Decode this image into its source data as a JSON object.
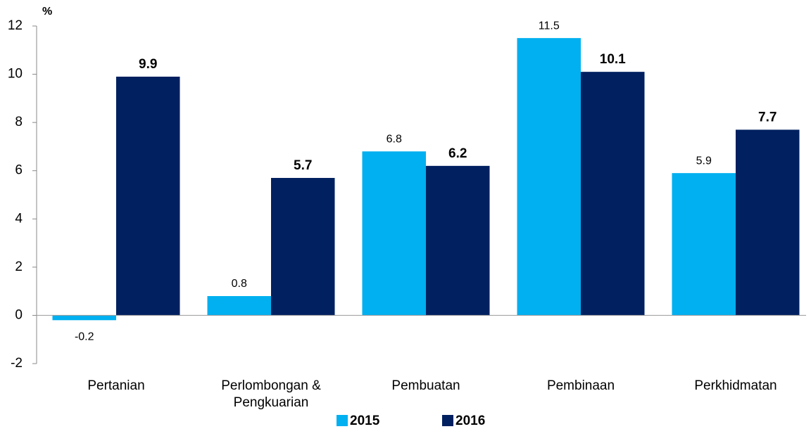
{
  "chart_data": {
    "type": "bar",
    "y_label": "%",
    "categories": [
      "Pertanian",
      "Perlombongan &\nPengkuarian",
      "Pembuatan",
      "Pembinaan",
      "Perkhidmatan"
    ],
    "series": [
      {
        "name": "2015",
        "color": "#00b0f0",
        "values": [
          -0.2,
          0.8,
          6.8,
          11.5,
          5.9
        ]
      },
      {
        "name": "2016",
        "color": "#002060",
        "values": [
          9.9,
          5.7,
          6.2,
          10.1,
          7.7
        ]
      }
    ],
    "ylim": [
      -2,
      12
    ],
    "yticks": [
      -2,
      0,
      2,
      4,
      6,
      8,
      10,
      12
    ],
    "grid": false,
    "legend": "bottom"
  }
}
